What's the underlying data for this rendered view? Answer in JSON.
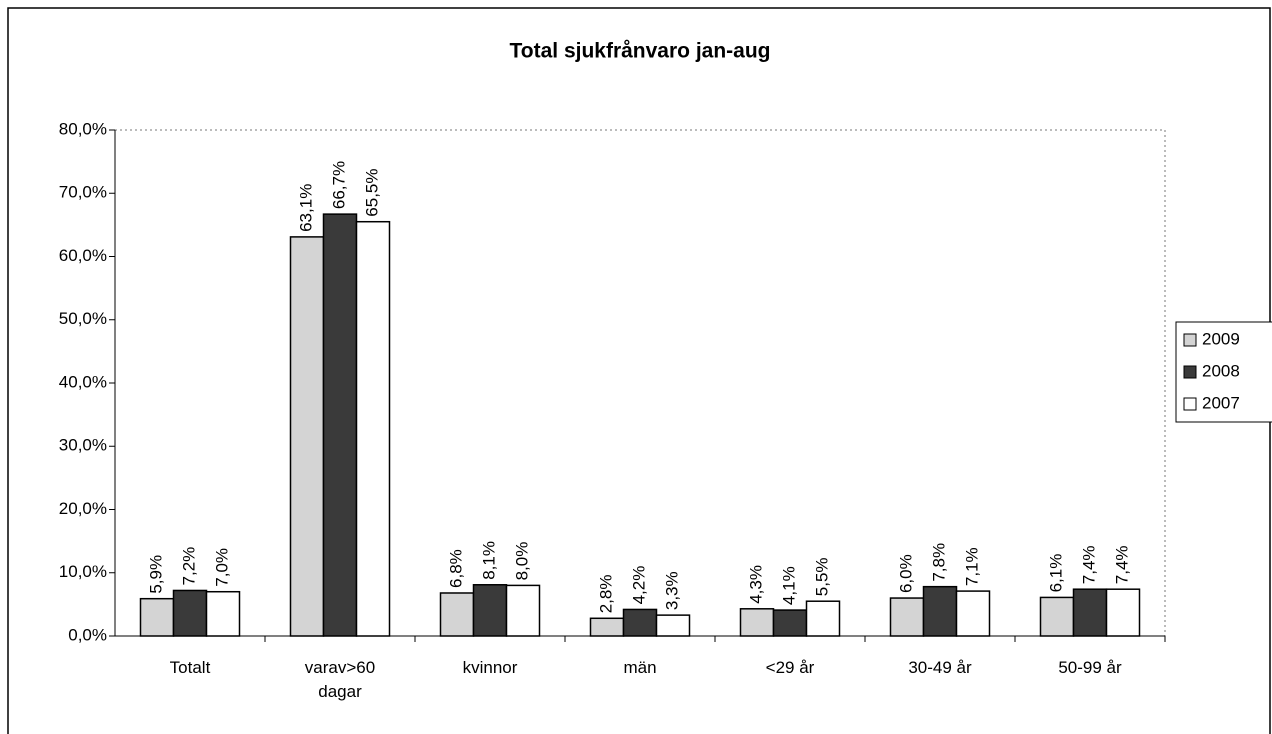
{
  "chart_data": {
    "type": "bar",
    "title": "Total sjukfrånvaro jan-aug",
    "categories": [
      "Totalt",
      "varav>60 dagar",
      "kvinnor",
      "män",
      "<29 år",
      "30-49 år",
      "50-99 år"
    ],
    "series": [
      {
        "name": "2009",
        "color": "#d4d4d4",
        "values": [
          5.9,
          63.1,
          6.8,
          2.8,
          4.3,
          6.0,
          6.1
        ],
        "value_labels": [
          "5,9%",
          "63,1%",
          "6,8%",
          "2,8%",
          "4,3%",
          "6,0%",
          "6,1%"
        ]
      },
      {
        "name": "2008",
        "color": "#3a3a3a",
        "values": [
          7.2,
          66.7,
          8.1,
          4.2,
          4.1,
          7.8,
          7.4
        ],
        "value_labels": [
          "7,2%",
          "66,7%",
          "8,1%",
          "4,2%",
          "4,1%",
          "7,8%",
          "7,4%"
        ]
      },
      {
        "name": "2007",
        "color": "#ffffff",
        "values": [
          7.0,
          65.5,
          8.0,
          3.3,
          5.5,
          7.1,
          7.4
        ],
        "value_labels": [
          "7,0%",
          "65,5%",
          "8,0%",
          "3,3%",
          "5,5%",
          "7,1%",
          "7,4%"
        ]
      }
    ],
    "ylim": [
      0,
      80
    ],
    "yticks": [
      {
        "value": 0,
        "label": "0,0%"
      },
      {
        "value": 10,
        "label": "10,0%"
      },
      {
        "value": 20,
        "label": "20,0%"
      },
      {
        "value": 30,
        "label": "30,0%"
      },
      {
        "value": 40,
        "label": "40,0%"
      },
      {
        "value": 50,
        "label": "50,0%"
      },
      {
        "value": 60,
        "label": "60,0%"
      },
      {
        "value": 70,
        "label": "70,0%"
      },
      {
        "value": 80,
        "label": "80,0%"
      }
    ],
    "legend": "right"
  }
}
